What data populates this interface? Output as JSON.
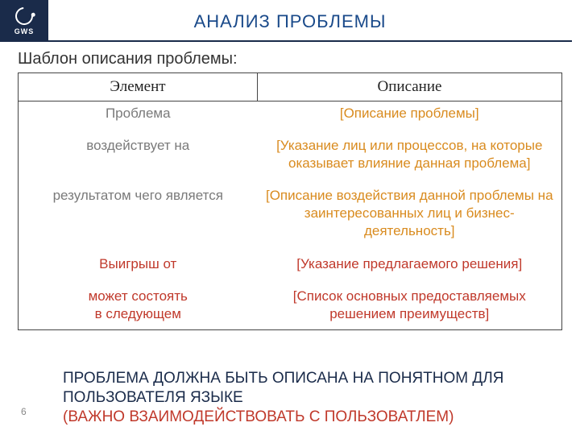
{
  "logo": {
    "text": "GWS"
  },
  "title": "АНАЛИЗ ПРОБЛЕМЫ",
  "subtitle": "Шаблон описания проблемы:",
  "table": {
    "headers": {
      "col1": "Элемент",
      "col2": "Описание"
    },
    "rows": [
      {
        "left": "Проблема",
        "right": "[Описание проблемы]",
        "left_color": "gray",
        "right_color": "orange"
      },
      {
        "left": "воздействует на",
        "right": "[Указание лиц или процессов, на которые оказывает влияние данная проблема]",
        "left_color": "gray",
        "right_color": "orange"
      },
      {
        "left": "результатом чего является",
        "right": "[Описание воздействия данной проблемы на заинтересованных лиц и бизнес-деятельность]",
        "left_color": "gray",
        "right_color": "orange"
      },
      {
        "left": "Выигрыш от",
        "right": "[Указание предлагаемого решения]",
        "left_color": "red",
        "right_color": "red"
      },
      {
        "left": "может состоять\nв следующем",
        "right": "[Список основных предоставляемых решением преимуществ]",
        "left_color": "red",
        "right_color": "red"
      }
    ]
  },
  "footer": {
    "line1": "ПРОБЛЕМА ДОЛЖНА БЫТЬ ОПИСАНА НА ПОНЯТНОМ ДЛЯ ПОЛЬЗОВАТЕЛЯ ЯЗЫКЕ",
    "line2": "(ВАЖНО ВЗАИМОДЕЙСТВОВАТЬ С ПОЛЬЗОВАТЛЕМ)"
  },
  "page_number": "6",
  "colors": {
    "navy": "#1a2b4a",
    "title_blue": "#1a4a8a",
    "gray": "#7a7a7a",
    "orange": "#d98b1f",
    "red": "#c0392b",
    "border": "#444444",
    "background": "#ffffff"
  }
}
